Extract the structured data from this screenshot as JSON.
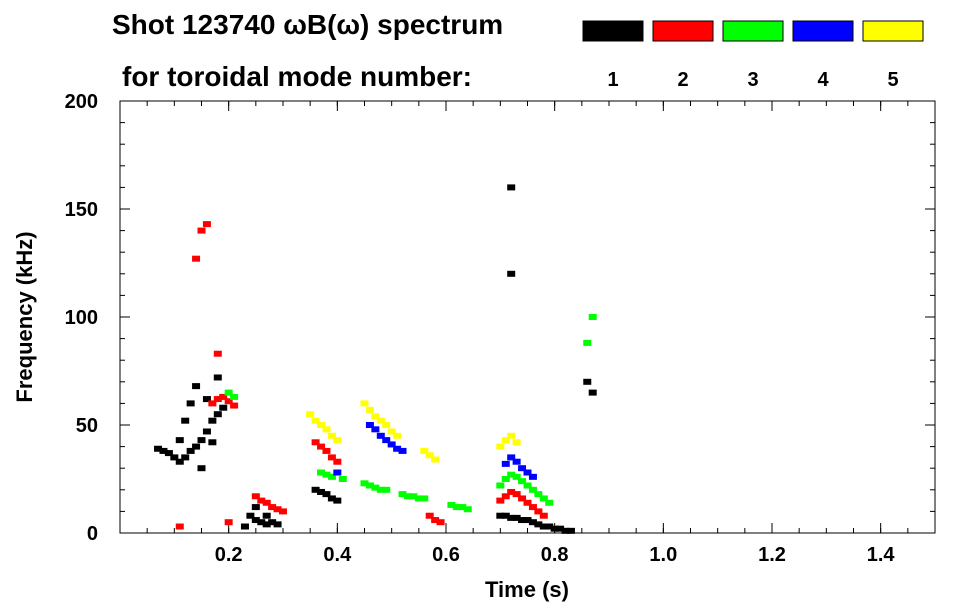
{
  "header": {
    "title": "Shot 123740 ωB(ω) spectrum",
    "legend_caption": "for toroidal mode number:"
  },
  "chart_data": {
    "type": "scatter",
    "title": "Shot 123740 ωB(ω) spectrum",
    "xlabel": "Time (s)",
    "ylabel": "Frequency (kHz)",
    "xlim": [
      0.0,
      1.5
    ],
    "ylim": [
      0,
      200
    ],
    "x_ticks": [
      {
        "value": 0.2,
        "label": "0.2"
      },
      {
        "value": 0.4,
        "label": "0.4"
      },
      {
        "value": 0.6,
        "label": "0.6"
      },
      {
        "value": 0.8,
        "label": "0.8"
      },
      {
        "value": 1.0,
        "label": "1.0"
      },
      {
        "value": 1.2,
        "label": "1.2"
      },
      {
        "value": 1.4,
        "label": "1.4"
      }
    ],
    "y_ticks": [
      {
        "value": 0,
        "label": "0"
      },
      {
        "value": 50,
        "label": "50"
      },
      {
        "value": 100,
        "label": "100"
      },
      {
        "value": 150,
        "label": "150"
      },
      {
        "value": 200,
        "label": "200"
      }
    ],
    "legend_placement": "top-right",
    "series": [
      {
        "name": "1",
        "color": "#000000",
        "points": [
          [
            0.07,
            39
          ],
          [
            0.08,
            38
          ],
          [
            0.09,
            37
          ],
          [
            0.1,
            35
          ],
          [
            0.11,
            33
          ],
          [
            0.12,
            35
          ],
          [
            0.13,
            38
          ],
          [
            0.14,
            40
          ],
          [
            0.15,
            43
          ],
          [
            0.16,
            47
          ],
          [
            0.17,
            52
          ],
          [
            0.18,
            55
          ],
          [
            0.11,
            43
          ],
          [
            0.12,
            52
          ],
          [
            0.13,
            60
          ],
          [
            0.14,
            68
          ],
          [
            0.16,
            62
          ],
          [
            0.18,
            72
          ],
          [
            0.19,
            58
          ],
          [
            0.15,
            30
          ],
          [
            0.17,
            42
          ],
          [
            0.24,
            8
          ],
          [
            0.25,
            6
          ],
          [
            0.26,
            5
          ],
          [
            0.27,
            4
          ],
          [
            0.28,
            5
          ],
          [
            0.29,
            4
          ],
          [
            0.25,
            12
          ],
          [
            0.27,
            8
          ],
          [
            0.23,
            3
          ],
          [
            0.36,
            20
          ],
          [
            0.37,
            19
          ],
          [
            0.38,
            18
          ],
          [
            0.39,
            16
          ],
          [
            0.4,
            15
          ],
          [
            0.7,
            8
          ],
          [
            0.71,
            8
          ],
          [
            0.72,
            7
          ],
          [
            0.73,
            7
          ],
          [
            0.74,
            6
          ],
          [
            0.75,
            6
          ],
          [
            0.76,
            5
          ],
          [
            0.77,
            4
          ],
          [
            0.78,
            3
          ],
          [
            0.79,
            3
          ],
          [
            0.8,
            2
          ],
          [
            0.81,
            2
          ],
          [
            0.82,
            1
          ],
          [
            0.83,
            1
          ],
          [
            0.72,
            160
          ],
          [
            0.72,
            120
          ],
          [
            0.86,
            70
          ],
          [
            0.87,
            65
          ]
        ]
      },
      {
        "name": "2",
        "color": "#ff0000",
        "points": [
          [
            0.15,
            140
          ],
          [
            0.16,
            143
          ],
          [
            0.14,
            127
          ],
          [
            0.17,
            60
          ],
          [
            0.18,
            62
          ],
          [
            0.19,
            63
          ],
          [
            0.2,
            61
          ],
          [
            0.21,
            59
          ],
          [
            0.18,
            83
          ],
          [
            0.25,
            17
          ],
          [
            0.26,
            15
          ],
          [
            0.27,
            14
          ],
          [
            0.28,
            12
          ],
          [
            0.29,
            11
          ],
          [
            0.3,
            10
          ],
          [
            0.36,
            42
          ],
          [
            0.37,
            40
          ],
          [
            0.38,
            38
          ],
          [
            0.39,
            35
          ],
          [
            0.4,
            33
          ],
          [
            0.57,
            8
          ],
          [
            0.58,
            6
          ],
          [
            0.59,
            5
          ],
          [
            0.7,
            15
          ],
          [
            0.71,
            17
          ],
          [
            0.72,
            19
          ],
          [
            0.73,
            18
          ],
          [
            0.74,
            16
          ],
          [
            0.75,
            14
          ],
          [
            0.76,
            12
          ],
          [
            0.77,
            10
          ],
          [
            0.78,
            8
          ],
          [
            0.11,
            3
          ],
          [
            0.2,
            5
          ]
        ]
      },
      {
        "name": "3",
        "color": "#00ff00",
        "points": [
          [
            0.2,
            65
          ],
          [
            0.21,
            63
          ],
          [
            0.37,
            28
          ],
          [
            0.38,
            27
          ],
          [
            0.39,
            26
          ],
          [
            0.41,
            25
          ],
          [
            0.45,
            23
          ],
          [
            0.46,
            22
          ],
          [
            0.47,
            21
          ],
          [
            0.48,
            20
          ],
          [
            0.49,
            20
          ],
          [
            0.52,
            18
          ],
          [
            0.53,
            17
          ],
          [
            0.54,
            17
          ],
          [
            0.55,
            16
          ],
          [
            0.56,
            16
          ],
          [
            0.61,
            13
          ],
          [
            0.62,
            12
          ],
          [
            0.63,
            12
          ],
          [
            0.64,
            11
          ],
          [
            0.7,
            22
          ],
          [
            0.71,
            25
          ],
          [
            0.72,
            27
          ],
          [
            0.73,
            26
          ],
          [
            0.74,
            24
          ],
          [
            0.75,
            22
          ],
          [
            0.76,
            20
          ],
          [
            0.77,
            18
          ],
          [
            0.78,
            16
          ],
          [
            0.79,
            14
          ],
          [
            0.87,
            100
          ],
          [
            0.86,
            88
          ]
        ]
      },
      {
        "name": "4",
        "color": "#0000ff",
        "points": [
          [
            0.46,
            50
          ],
          [
            0.47,
            48
          ],
          [
            0.48,
            45
          ],
          [
            0.49,
            43
          ],
          [
            0.5,
            41
          ],
          [
            0.51,
            39
          ],
          [
            0.52,
            38
          ],
          [
            0.71,
            32
          ],
          [
            0.72,
            35
          ],
          [
            0.73,
            33
          ],
          [
            0.74,
            30
          ],
          [
            0.75,
            28
          ],
          [
            0.76,
            26
          ],
          [
            0.4,
            28
          ]
        ]
      },
      {
        "name": "5",
        "color": "#ffff00",
        "points": [
          [
            0.35,
            55
          ],
          [
            0.36,
            52
          ],
          [
            0.37,
            50
          ],
          [
            0.38,
            48
          ],
          [
            0.39,
            45
          ],
          [
            0.4,
            43
          ],
          [
            0.45,
            60
          ],
          [
            0.46,
            57
          ],
          [
            0.47,
            54
          ],
          [
            0.48,
            52
          ],
          [
            0.49,
            50
          ],
          [
            0.5,
            47
          ],
          [
            0.51,
            45
          ],
          [
            0.56,
            38
          ],
          [
            0.57,
            36
          ],
          [
            0.58,
            34
          ],
          [
            0.7,
            40
          ],
          [
            0.71,
            43
          ],
          [
            0.72,
            45
          ],
          [
            0.73,
            42
          ]
        ]
      }
    ]
  }
}
